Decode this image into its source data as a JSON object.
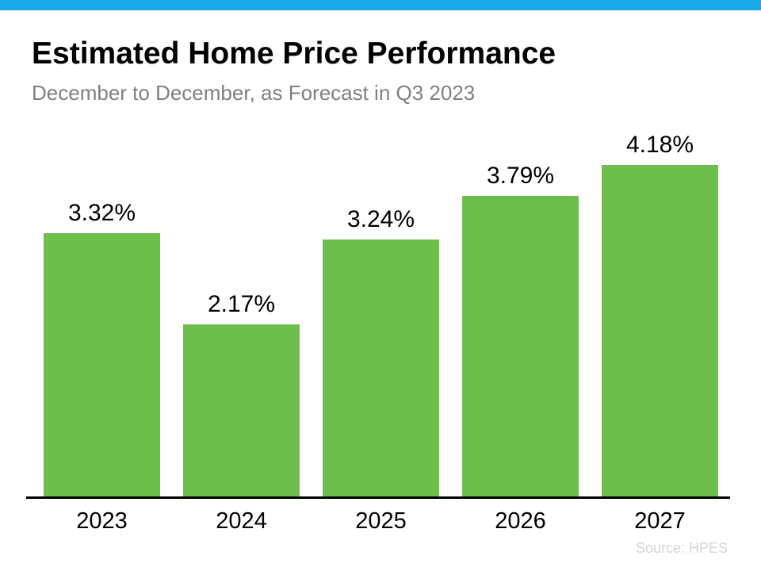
{
  "page": {
    "accent_bar_color": "#18a9e8",
    "background_color": "#ffffff"
  },
  "header": {
    "title": "Estimated Home Price Performance",
    "subtitle": "December to December, as Forecast in Q3 2023"
  },
  "footer": {
    "source": "Source: HPES"
  },
  "chart_data": {
    "type": "bar",
    "title": "Estimated Home Price Performance",
    "subtitle": "December to December, as Forecast in Q3 2023",
    "categories": [
      "2023",
      "2024",
      "2025",
      "2026",
      "2027"
    ],
    "values": [
      3.32,
      2.17,
      3.24,
      3.79,
      4.18
    ],
    "value_labels": [
      "3.32%",
      "2.17%",
      "3.24%",
      "3.79%",
      "4.18%"
    ],
    "xlabel": "",
    "ylabel": "",
    "ylim": [
      0,
      4.5
    ],
    "grid": false,
    "legend": false,
    "bar_color": "#6dbe4c",
    "axis_color": "#000000",
    "source": "Source: HPES"
  }
}
